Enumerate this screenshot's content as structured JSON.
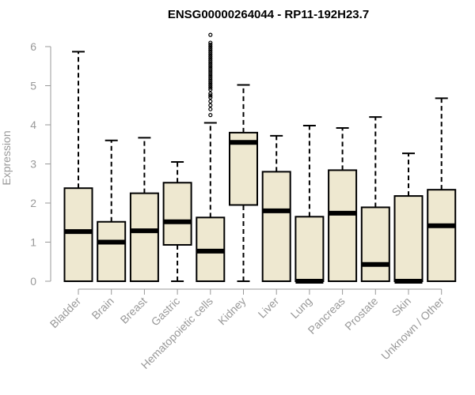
{
  "chart_data": {
    "type": "boxplot",
    "title": "ENSG00000264044 - RP11-192H23.7",
    "xlabel": "",
    "ylabel": "Expression",
    "ylim": [
      0,
      6.2
    ],
    "yticks": [
      0,
      1,
      2,
      3,
      4,
      5,
      6
    ],
    "box_fill": "#eee8d0",
    "box_stroke": "#000000",
    "axis_color": "#999999",
    "categories": [
      "Bladder",
      "Brain",
      "Breast",
      "Gastric",
      "Hematopoietic cells",
      "Kidney",
      "Liver",
      "Lung",
      "Pancreas",
      "Prostate",
      "Skin",
      "Unknown / Other"
    ],
    "boxes": [
      {
        "min": 0,
        "q1": 0,
        "median": 1.27,
        "q3": 2.38,
        "max": 5.87,
        "outliers": []
      },
      {
        "min": 0,
        "q1": 0,
        "median": 1.0,
        "q3": 1.52,
        "max": 3.6,
        "outliers": []
      },
      {
        "min": 0,
        "q1": 0,
        "median": 1.29,
        "q3": 2.25,
        "max": 3.67,
        "outliers": []
      },
      {
        "min": 0,
        "q1": 0.93,
        "median": 1.52,
        "q3": 2.52,
        "max": 3.05,
        "outliers": []
      },
      {
        "min": 0,
        "q1": 0,
        "median": 0.77,
        "q3": 1.63,
        "max": 4.05,
        "outliers": [
          4.25,
          4.4,
          4.5,
          4.6,
          4.7,
          4.75,
          4.8,
          4.9,
          4.95,
          5.0,
          5.05,
          5.1,
          5.15,
          5.2,
          5.25,
          5.3,
          5.35,
          5.4,
          5.45,
          5.5,
          5.55,
          5.6,
          5.65,
          5.7,
          5.75,
          5.8,
          5.85,
          5.9,
          5.95,
          6.0,
          6.05,
          6.1,
          6.3
        ]
      },
      {
        "min": 0,
        "q1": 1.95,
        "median": 3.55,
        "q3": 3.8,
        "max": 5.02,
        "outliers": []
      },
      {
        "min": 0,
        "q1": 0,
        "median": 1.8,
        "q3": 2.8,
        "max": 3.72,
        "outliers": []
      },
      {
        "min": 0,
        "q1": 0,
        "median": 0.0,
        "q3": 1.65,
        "max": 3.98,
        "outliers": []
      },
      {
        "min": 0,
        "q1": 0,
        "median": 1.74,
        "q3": 2.84,
        "max": 3.92,
        "outliers": []
      },
      {
        "min": 0,
        "q1": 0,
        "median": 0.43,
        "q3": 1.89,
        "max": 4.2,
        "outliers": []
      },
      {
        "min": 0,
        "q1": 0,
        "median": 0.0,
        "q3": 2.18,
        "max": 3.27,
        "outliers": []
      },
      {
        "min": 0,
        "q1": 0,
        "median": 1.42,
        "q3": 2.34,
        "max": 4.68,
        "outliers": []
      }
    ]
  }
}
